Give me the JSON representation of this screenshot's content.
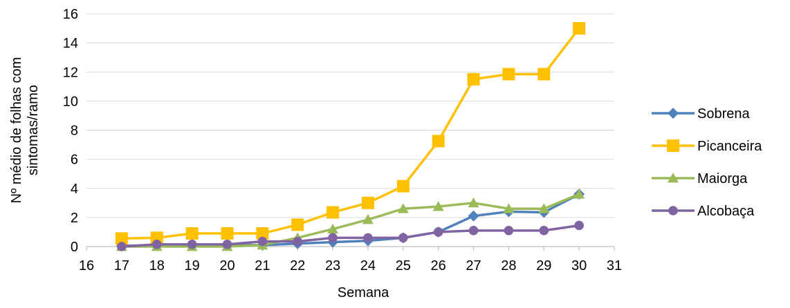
{
  "chart_data": {
    "type": "line",
    "title": "",
    "xlabel": "Semana",
    "ylabel_lines": [
      "Nº médio de folhas com",
      "sintomas/ramo"
    ],
    "xlim": [
      16,
      31
    ],
    "ylim": [
      0,
      16
    ],
    "xticks": [
      "16",
      "17",
      "18",
      "19",
      "20",
      "21",
      "22",
      "23",
      "24",
      "25",
      "26",
      "27",
      "28",
      "29",
      "30",
      "31"
    ],
    "yticks": [
      "0",
      "2",
      "4",
      "6",
      "8",
      "10",
      "12",
      "14",
      "16"
    ],
    "grid": "horizontal",
    "legend_position": "right",
    "x": [
      17,
      18,
      19,
      20,
      21,
      22,
      23,
      24,
      25,
      26,
      27,
      28,
      29,
      30
    ],
    "series": [
      {
        "name": "Sobrena",
        "marker": "diamond",
        "color": "#4F81BD",
        "values": [
          0.05,
          0.1,
          0.1,
          0.1,
          0.1,
          0.2,
          0.3,
          0.4,
          0.6,
          1.0,
          2.1,
          2.4,
          2.35,
          3.6
        ]
      },
      {
        "name": "Picanceira",
        "marker": "square",
        "color": "#FFC000",
        "values": [
          0.55,
          0.6,
          0.9,
          0.9,
          0.9,
          1.5,
          2.35,
          3.0,
          4.15,
          7.25,
          11.5,
          11.85,
          11.85,
          15.0
        ]
      },
      {
        "name": "Maiorga",
        "marker": "triangle",
        "color": "#9BBB59",
        "values": [
          0.0,
          0.0,
          0.0,
          0.0,
          0.1,
          0.6,
          1.2,
          1.85,
          2.6,
          2.75,
          3.0,
          2.6,
          2.6,
          3.6
        ]
      },
      {
        "name": "Alcobaça",
        "marker": "circle",
        "color": "#8064A2",
        "values": [
          0.0,
          0.15,
          0.15,
          0.15,
          0.35,
          0.35,
          0.6,
          0.6,
          0.6,
          1.0,
          1.1,
          1.1,
          1.1,
          1.45
        ]
      }
    ]
  }
}
